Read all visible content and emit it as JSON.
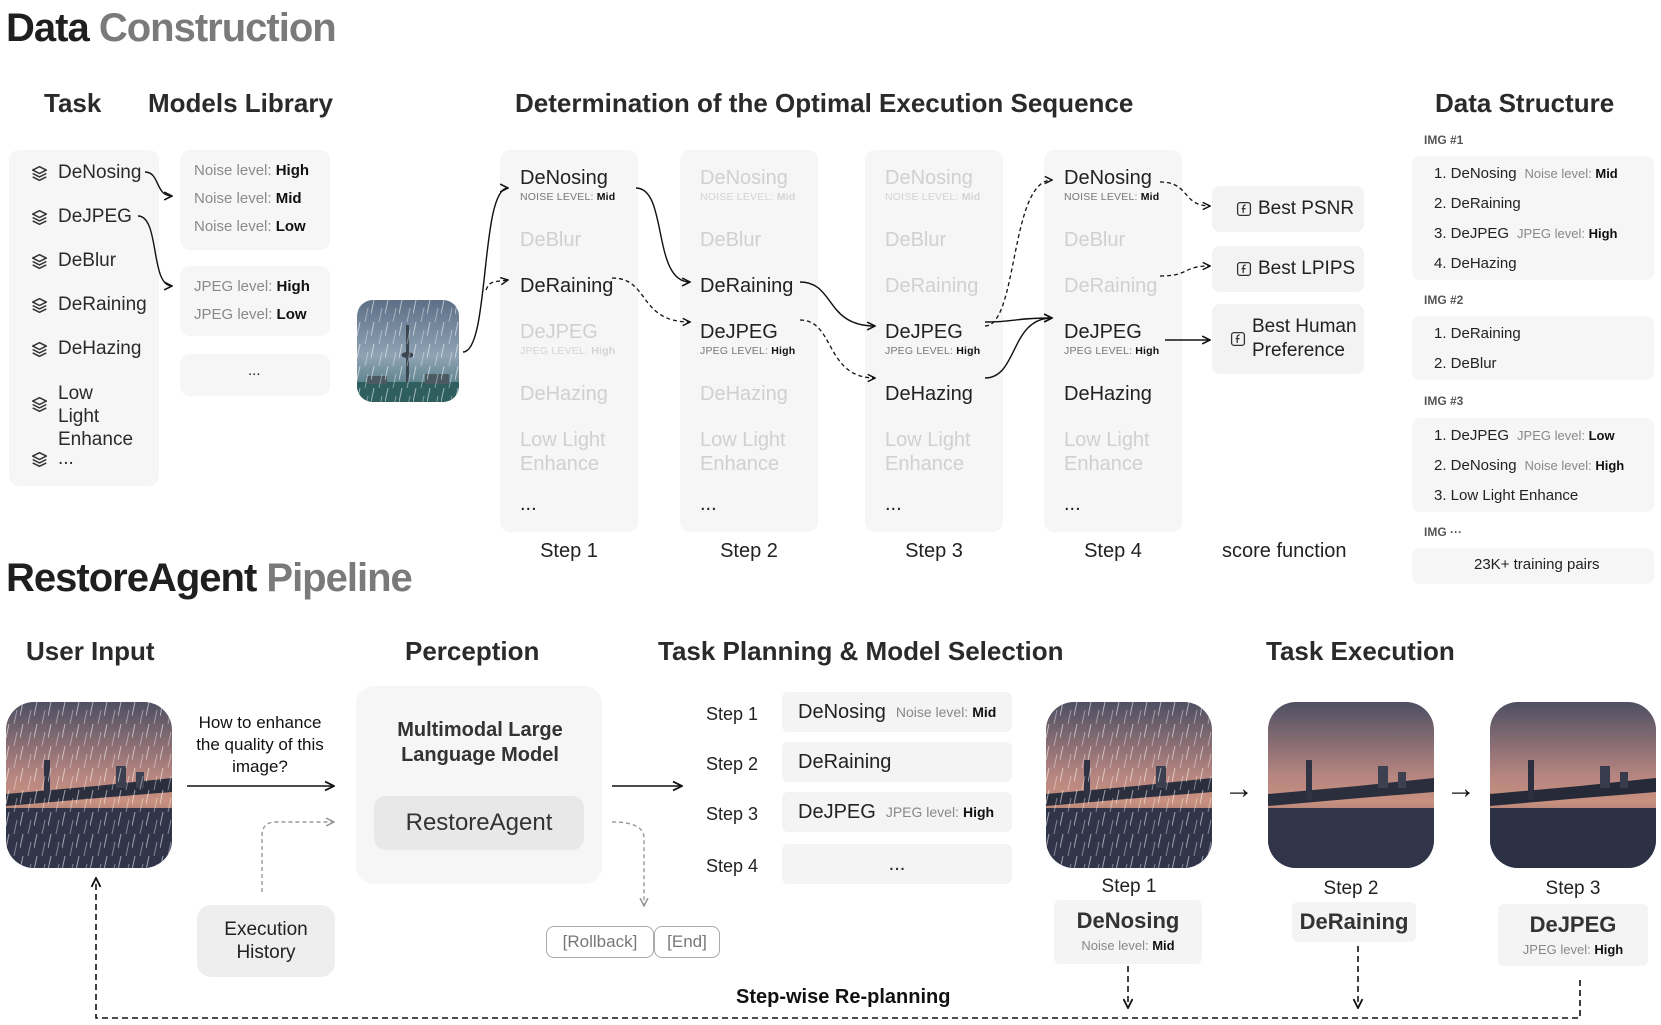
{
  "data_construction": {
    "title_dark": "Data",
    "title_light": "Construction",
    "task_header": "Task",
    "models_header": "Models Library",
    "determination_header": "Determination of the Optimal Execution Sequence",
    "data_structure_header": "Data Structure",
    "tasks": [
      "DeNosing",
      "DeJPEG",
      "DeBlur",
      "DeRaining",
      "DeHazing",
      "Low Light Enhance",
      "..."
    ],
    "noise_levels": [
      {
        "label": "Noise level: ",
        "value": "High"
      },
      {
        "label": "Noise level: ",
        "value": "Mid"
      },
      {
        "label": "Noise level: ",
        "value": "Low"
      }
    ],
    "jpeg_levels": [
      {
        "label": "JPEG level: ",
        "value": "High"
      },
      {
        "label": "JPEG level: ",
        "value": "Low"
      }
    ],
    "library_more": "...",
    "step_columns": {
      "items": [
        "DeNosing",
        "DeBlur",
        "DeRaining",
        "DeJPEG",
        "DeHazing",
        "Low Light Enhance",
        "..."
      ],
      "denoise_sub_label": "NOISE LEVEL: ",
      "denoise_sub_value": "Mid",
      "jpeg_sub_label": "JPEG LEVEL: ",
      "jpeg_sub_value": "High"
    },
    "step_labels": [
      "Step 1",
      "Step 2",
      "Step 3",
      "Step 4"
    ],
    "score_function_label": "score function",
    "scores": [
      "Best PSNR",
      "Best LPIPS",
      "Best Human Preference"
    ],
    "data_structure": {
      "img1_label": "IMG #1",
      "img1": [
        {
          "text": "1. DeNosing",
          "k": "Noise level: ",
          "v": "Mid"
        },
        {
          "text": "2. DeRaining",
          "k": "",
          "v": ""
        },
        {
          "text": "3. DeJPEG",
          "k": "JPEG level: ",
          "v": "High"
        },
        {
          "text": "4. DeHazing",
          "k": "",
          "v": ""
        }
      ],
      "img2_label": "IMG #2",
      "img2": [
        {
          "text": "1. DeRaining"
        },
        {
          "text": "2. DeBlur"
        }
      ],
      "img3_label": "IMG #3",
      "img3": [
        {
          "text": "1. DeJPEG",
          "k": "JPEG level: ",
          "v": "Low"
        },
        {
          "text": "2. DeNosing",
          "k": "Noise level: ",
          "v": "High"
        },
        {
          "text": "3. Low Light Enhance",
          "k": "",
          "v": ""
        }
      ],
      "img_more_label": "IMG ···",
      "pairs": "23K+ training pairs"
    }
  },
  "pipeline": {
    "title_dark": "RestoreAgent",
    "title_light": "Pipeline",
    "user_input_header": "User Input",
    "perception_header": "Perception",
    "planning_header": "Task Planning & Model Selection",
    "execution_header": "Task Execution",
    "question": "How to enhance the quality of this image?",
    "execution_history": "Execution History",
    "mllm": "Multimodal Large Language Model",
    "agent": "RestoreAgent",
    "rollback": "[Rollback]",
    "end": "[End]",
    "plan_steps": [
      {
        "step": "Step 1",
        "task": "DeNosing",
        "k": "Noise level:",
        "v": "Mid"
      },
      {
        "step": "Step 2",
        "task": "DeRaining",
        "k": "",
        "v": ""
      },
      {
        "step": "Step 3",
        "task": "DeJPEG",
        "k": "JPEG level:",
        "v": "High"
      },
      {
        "step": "Step 4",
        "task": "...",
        "k": "",
        "v": ""
      }
    ],
    "exec_steps": [
      {
        "step": "Step 1",
        "task": "DeNosing",
        "k": "Noise level: ",
        "v": "Mid"
      },
      {
        "step": "Step 2",
        "task": "DeRaining",
        "k": "",
        "v": ""
      },
      {
        "step": "Step 3",
        "task": "DeJPEG",
        "k": "JPEG level: ",
        "v": "High"
      }
    ],
    "replanning": "Step-wise Re-planning",
    "arrow": "→"
  },
  "icons": [
    "layers-icon",
    "function-icon",
    "rain-photo",
    "arrow-icon"
  ]
}
